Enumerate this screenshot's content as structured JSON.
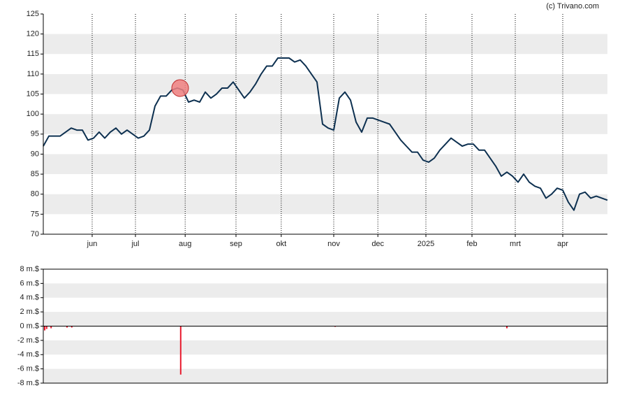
{
  "chart_data": [
    {
      "type": "line",
      "source": "(c) Trivano.com",
      "color": "#0d3050",
      "grid": "bands",
      "band_color": "#ececec",
      "xlim": [
        0,
        101
      ],
      "xticks": [
        {
          "value": 8.75,
          "label": "jun"
        },
        {
          "value": 16.5,
          "label": "jul"
        },
        {
          "value": 25.4,
          "label": "aug"
        },
        {
          "value": 34.5,
          "label": "sep"
        },
        {
          "value": 42.6,
          "label": "okt"
        },
        {
          "value": 52,
          "label": "nov"
        },
        {
          "value": 59.9,
          "label": "dec"
        },
        {
          "value": 68.5,
          "label": "2025"
        },
        {
          "value": 76.75,
          "label": "feb"
        },
        {
          "value": 84.5,
          "label": "mrt"
        },
        {
          "value": 93,
          "label": "apr"
        }
      ],
      "ylim": [
        70,
        125
      ],
      "yticks": [
        70,
        75,
        80,
        85,
        90,
        95,
        100,
        105,
        110,
        115,
        120,
        125
      ],
      "values": [
        92,
        94.5,
        94.5,
        94.5,
        95.5,
        96.5,
        96,
        96,
        93.5,
        94,
        95.5,
        94,
        95.5,
        96.5,
        95,
        96,
        95,
        94,
        94.5,
        96,
        102,
        104.5,
        104.5,
        106,
        106.5,
        106,
        103,
        103.5,
        103,
        105.5,
        104,
        105,
        106.5,
        106.5,
        108,
        106,
        104,
        105.5,
        107.5,
        110,
        112,
        112,
        114,
        114,
        114,
        113,
        113.5,
        112,
        110,
        108,
        97.5,
        96.5,
        96,
        104,
        105.5,
        103.5,
        98,
        95.5,
        99,
        99,
        98.5,
        98,
        97.5,
        95.5,
        93.5,
        92,
        90.5,
        90.5,
        88.5,
        88,
        89,
        91,
        92.5,
        94,
        93,
        92,
        92.5,
        92.5,
        91,
        91,
        89,
        87,
        84.5,
        85.5,
        84.5,
        83,
        85,
        83,
        82,
        81.5,
        79,
        80,
        81.5,
        81,
        78,
        76,
        80,
        80.5,
        79,
        79.5,
        79,
        78.5
      ],
      "highlight": {
        "x": 24.5,
        "value": 106.5,
        "color": "#f08080"
      }
    },
    {
      "type": "bar",
      "color": "#e8192c",
      "grid": "bands",
      "band_color": "#ececec",
      "xlim": [
        0,
        101
      ],
      "x": [
        0.25,
        0.6,
        1.4,
        4.25,
        5.1,
        24.6,
        52.25,
        83
      ],
      "values": [
        -0.6,
        -0.4,
        -0.3,
        -0.2,
        -0.2,
        -6.8,
        -0.1,
        -0.3
      ],
      "ylim": [
        -8,
        8
      ],
      "yticks": [
        {
          "value": -8,
          "label": "-8 m.$"
        },
        {
          "value": -6,
          "label": "-6 m.$"
        },
        {
          "value": -4,
          "label": "-4 m.$"
        },
        {
          "value": -2,
          "label": "-2 m.$"
        },
        {
          "value": 0,
          "label": "0 m.$"
        },
        {
          "value": 2,
          "label": "2 m.$"
        },
        {
          "value": 4,
          "label": "4 m.$"
        },
        {
          "value": 6,
          "label": "6 m.$"
        },
        {
          "value": 8,
          "label": "8 m.$"
        }
      ]
    }
  ]
}
